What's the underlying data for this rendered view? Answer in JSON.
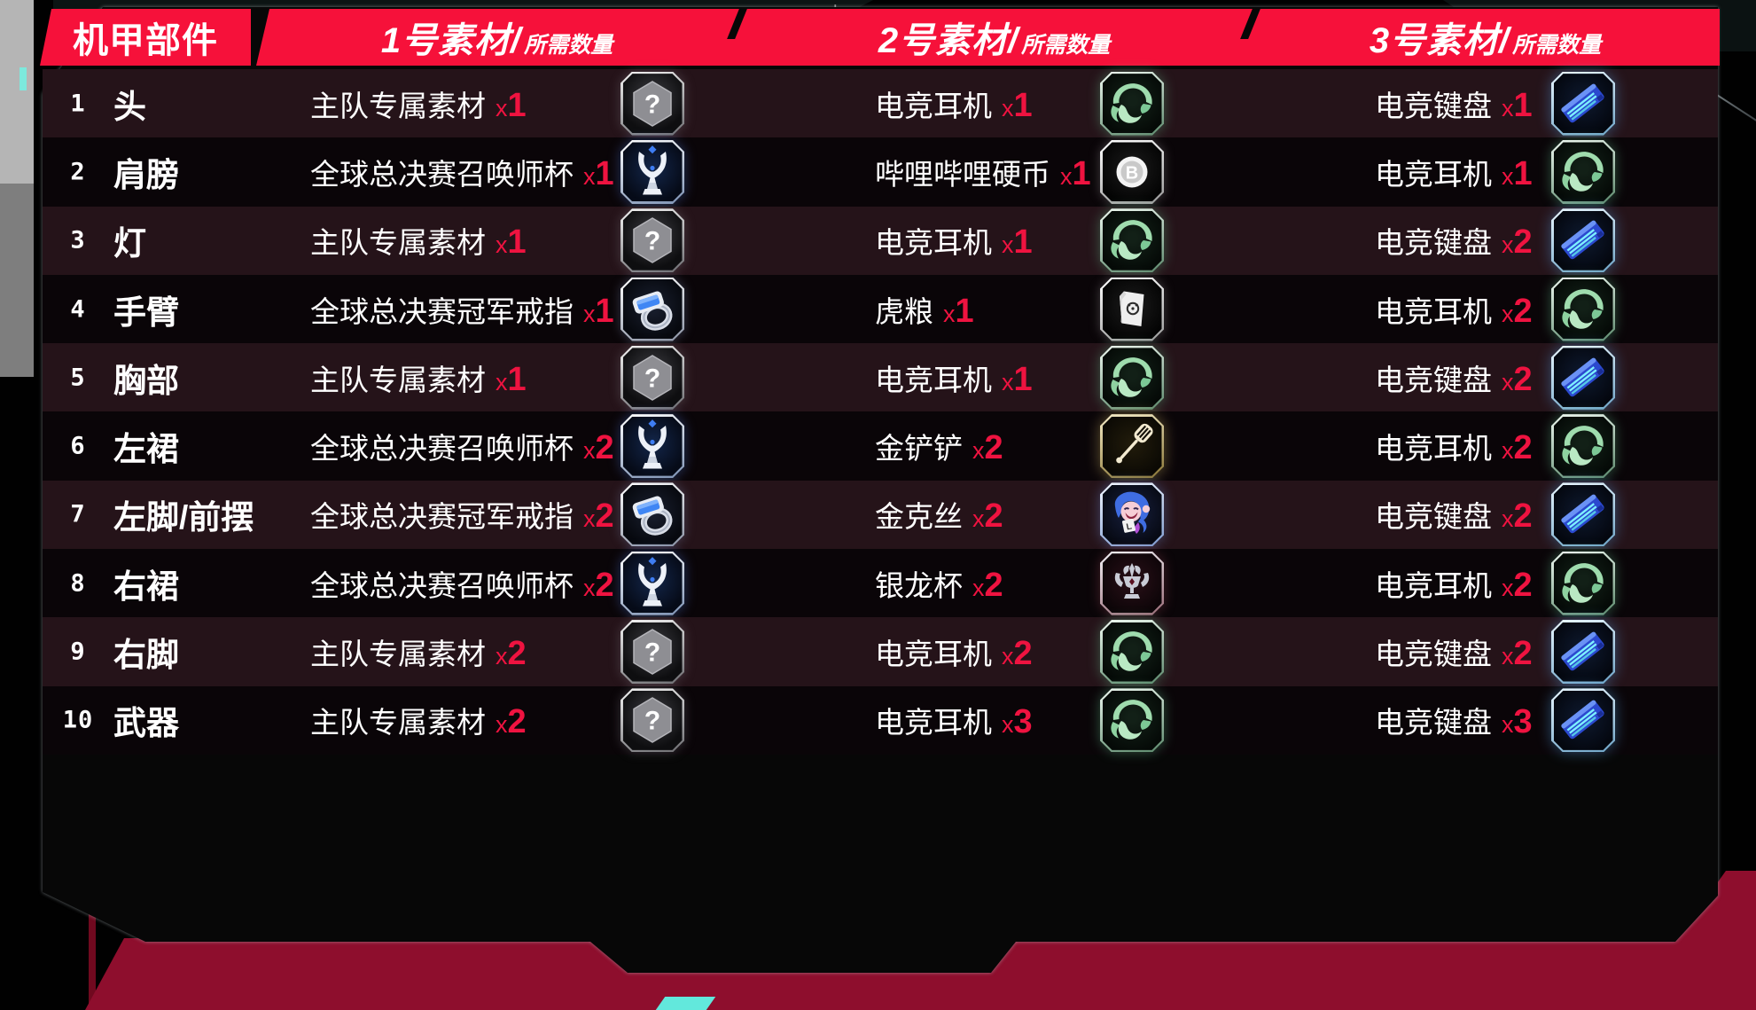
{
  "header": {
    "part_col": "机甲部件",
    "material_cols": [
      {
        "big": "1号素材/",
        "small": "所需数量"
      },
      {
        "big": "2号素材/",
        "small": "所需数量"
      },
      {
        "big": "3号素材/",
        "small": "所需数量"
      }
    ]
  },
  "colors": {
    "header_red": "#f6113a",
    "count_red": "#ef1340",
    "row_odd": "#251319",
    "row_even": "#0a0508",
    "band_red": "#8e0e2d",
    "teal_accent": "#62e8dc"
  },
  "rows": [
    {
      "no": "1",
      "part": "头",
      "m1": {
        "name": "主队专属素材",
        "count": "x1",
        "icon": "question"
      },
      "m2": {
        "name": "电竞耳机",
        "count": "x1",
        "icon": "headset"
      },
      "m3": {
        "name": "电竞键盘",
        "count": "x1",
        "icon": "keyboard"
      }
    },
    {
      "no": "2",
      "part": "肩膀",
      "m1": {
        "name": "全球总决赛召唤师杯",
        "count": "x1",
        "icon": "trophy"
      },
      "m2": {
        "name": "哔哩哔哩硬币",
        "count": "x1",
        "icon": "bilibili-coin"
      },
      "m3": {
        "name": "电竞耳机",
        "count": "x1",
        "icon": "headset"
      }
    },
    {
      "no": "3",
      "part": "灯",
      "m1": {
        "name": "主队专属素材",
        "count": "x1",
        "icon": "question"
      },
      "m2": {
        "name": "电竞耳机",
        "count": "x1",
        "icon": "headset"
      },
      "m3": {
        "name": "电竞键盘",
        "count": "x2",
        "icon": "keyboard"
      }
    },
    {
      "no": "4",
      "part": "手臂",
      "m1": {
        "name": "全球总决赛冠军戒指",
        "count": "x1",
        "icon": "ring"
      },
      "m2": {
        "name": "虎粮",
        "count": "x1",
        "icon": "tiger-food-bag"
      },
      "m3": {
        "name": "电竞耳机",
        "count": "x2",
        "icon": "headset"
      }
    },
    {
      "no": "5",
      "part": "胸部",
      "m1": {
        "name": "主队专属素材",
        "count": "x1",
        "icon": "question"
      },
      "m2": {
        "name": "电竞耳机",
        "count": "x1",
        "icon": "headset"
      },
      "m3": {
        "name": "电竞键盘",
        "count": "x2",
        "icon": "keyboard"
      }
    },
    {
      "no": "6",
      "part": "左裙",
      "m1": {
        "name": "全球总决赛召唤师杯",
        "count": "x2",
        "icon": "trophy"
      },
      "m2": {
        "name": "金铲铲",
        "count": "x2",
        "icon": "golden-spatula"
      },
      "m3": {
        "name": "电竞耳机",
        "count": "x2",
        "icon": "headset"
      }
    },
    {
      "no": "7",
      "part": "左脚/前摆",
      "m1": {
        "name": "全球总决赛冠军戒指",
        "count": "x2",
        "icon": "ring"
      },
      "m2": {
        "name": "金克丝",
        "count": "x2",
        "icon": "jinx"
      },
      "m3": {
        "name": "电竞键盘",
        "count": "x2",
        "icon": "keyboard"
      }
    },
    {
      "no": "8",
      "part": "右裙",
      "m1": {
        "name": "全球总决赛召唤师杯",
        "count": "x2",
        "icon": "trophy"
      },
      "m2": {
        "name": "银龙杯",
        "count": "x2",
        "icon": "silver-dragon-cup"
      },
      "m3": {
        "name": "电竞耳机",
        "count": "x2",
        "icon": "headset"
      }
    },
    {
      "no": "9",
      "part": "右脚",
      "m1": {
        "name": "主队专属素材",
        "count": "x2",
        "icon": "question"
      },
      "m2": {
        "name": "电竞耳机",
        "count": "x2",
        "icon": "headset"
      },
      "m3": {
        "name": "电竞键盘",
        "count": "x2",
        "icon": "keyboard"
      }
    },
    {
      "no": "10",
      "part": "武器",
      "m1": {
        "name": "主队专属素材",
        "count": "x2",
        "icon": "question"
      },
      "m2": {
        "name": "电竞耳机",
        "count": "x3",
        "icon": "headset"
      },
      "m3": {
        "name": "电竞键盘",
        "count": "x3",
        "icon": "keyboard"
      }
    }
  ]
}
